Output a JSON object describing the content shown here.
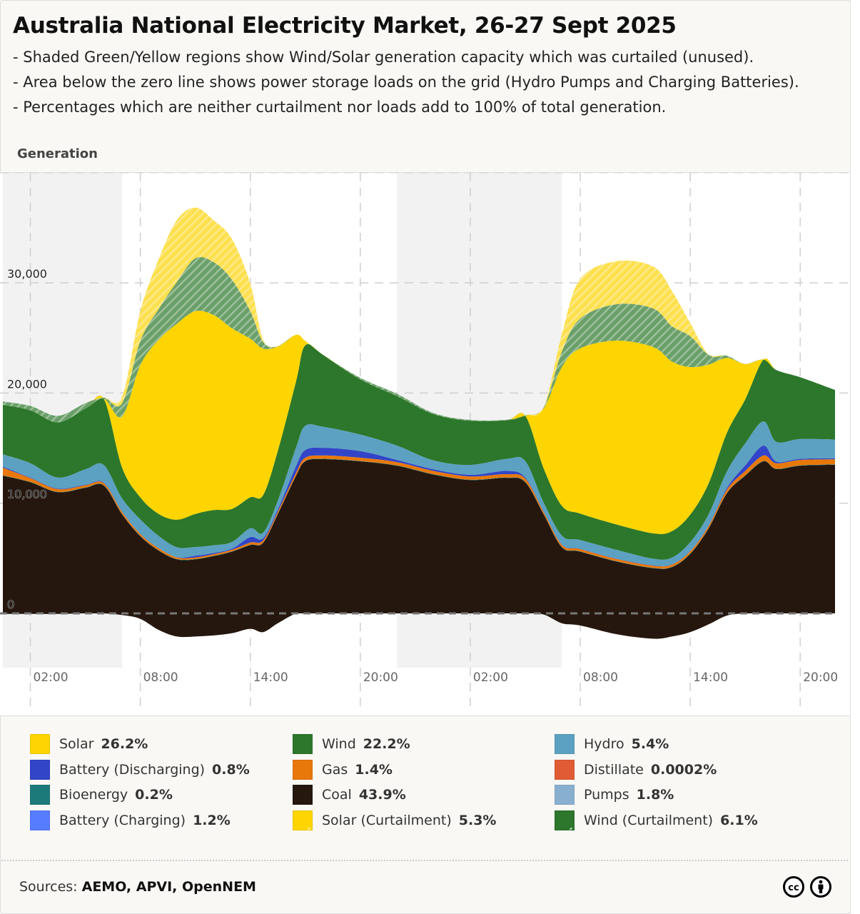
{
  "title": "Australia National Electricity Market, 26-27 Sept 2025",
  "notes": [
    "- Shaded Green/Yellow regions show Wind/Solar generation capacity which was curtailed (unused).",
    "- Area below the zero line shows power storage loads on the grid (Hydro Pumps and Charging Batteries).",
    "- Percentages which are neither curtailment nor loads add to 100% of total generation."
  ],
  "generation_label": "Generation",
  "legend": [
    {
      "label": "Solar",
      "pct": "26.2%",
      "color": "#fed500",
      "hatched": false
    },
    {
      "label": "Battery (Discharging)",
      "pct": "0.8%",
      "color": "#3245c8",
      "hatched": false
    },
    {
      "label": "Bioenergy",
      "pct": "0.2%",
      "color": "#1d7a7a",
      "hatched": false
    },
    {
      "label": "Battery (Charging)",
      "pct": "1.2%",
      "color": "#577cff",
      "hatched": false
    },
    {
      "label": "Wind",
      "pct": "22.2%",
      "color": "#2c772b",
      "hatched": false
    },
    {
      "label": "Gas",
      "pct": "1.4%",
      "color": "#e87809",
      "hatched": false
    },
    {
      "label": "Coal",
      "pct": "43.9%",
      "color": "#25170e",
      "hatched": false
    },
    {
      "label": "Solar (Curtailment)",
      "pct": "5.3%",
      "color": "#fed500",
      "hatched": true
    },
    {
      "label": "Hydro",
      "pct": "5.4%",
      "color": "#5ca1c1",
      "hatched": false
    },
    {
      "label": "Distillate",
      "pct": "0.0002%",
      "color": "#e15c34",
      "hatched": false
    },
    {
      "label": "Pumps",
      "pct": "1.8%",
      "color": "#88afd0",
      "hatched": false
    },
    {
      "label": "Wind (Curtailment)",
      "pct": "6.1%",
      "color": "#2c772b",
      "hatched": true
    }
  ],
  "sources_label": "Sources:",
  "sources_value": "AEMO, APVI, OpenNEM",
  "chart_data": {
    "type": "area",
    "title": "Australia National Electricity Market, 26-27 Sept 2025",
    "ylabel": "Generation",
    "ylim": [
      -3000,
      40000
    ],
    "yticks": [
      0,
      10000,
      20000,
      30000
    ],
    "ytick_labels": [
      "0",
      "10,000",
      "20,000",
      "30,000"
    ],
    "xlim_hours": [
      0.5,
      45.9
    ],
    "xticks_hours": [
      2,
      8,
      14,
      20,
      26,
      32,
      38,
      44
    ],
    "xtick_labels": [
      "02:00",
      "08:00",
      "14:00",
      "20:00",
      "02:00",
      "08:00",
      "14:00",
      "20:00"
    ],
    "night_bands_hours": [
      [
        0.5,
        7.0
      ],
      [
        22.0,
        31.0
      ]
    ],
    "grid": true,
    "legend_position": "bottom",
    "x_hours": [
      0.5,
      2,
      3.5,
      5,
      6,
      7,
      8,
      9,
      10,
      11,
      12,
      13,
      14,
      14.7,
      15.5,
      16.5,
      17,
      18,
      20,
      22,
      24,
      26,
      28,
      29,
      30,
      31,
      32,
      34,
      36,
      37,
      38,
      39,
      40,
      41,
      42,
      42.7,
      44,
      45.9
    ],
    "series": [
      {
        "name": "Coal",
        "values": [
          12500,
          11900,
          11000,
          11400,
          11600,
          9000,
          7000,
          5700,
          4900,
          4900,
          5200,
          5600,
          6200,
          6400,
          9000,
          12500,
          13800,
          14000,
          13800,
          13400,
          12600,
          12100,
          12300,
          11900,
          9000,
          6000,
          5600,
          4700,
          4100,
          4200,
          5400,
          7700,
          10900,
          12500,
          13800,
          13100,
          13400,
          13500
        ]
      },
      {
        "name": "Bioenergy",
        "values": [
          30,
          30,
          30,
          30,
          30,
          30,
          30,
          30,
          30,
          30,
          30,
          30,
          30,
          30,
          30,
          30,
          30,
          30,
          30,
          30,
          30,
          30,
          30,
          30,
          30,
          30,
          30,
          30,
          30,
          30,
          30,
          30,
          30,
          30,
          30,
          30,
          30,
          30
        ]
      },
      {
        "name": "Gas",
        "values": [
          700,
          350,
          250,
          200,
          200,
          200,
          180,
          180,
          150,
          150,
          150,
          150,
          200,
          200,
          200,
          250,
          300,
          300,
          300,
          300,
          300,
          300,
          300,
          300,
          200,
          200,
          200,
          200,
          200,
          200,
          200,
          200,
          300,
          400,
          500,
          500,
          500,
          450
        ]
      },
      {
        "name": "Distillate",
        "values": [
          0,
          0,
          0,
          0,
          0,
          0,
          0,
          0,
          0,
          0,
          0,
          0,
          0,
          0,
          0,
          0,
          0,
          0,
          0,
          0,
          0,
          0,
          0,
          0,
          0,
          0,
          0,
          0,
          0,
          0,
          0,
          0,
          0,
          0,
          0,
          0,
          0,
          0
        ]
      },
      {
        "name": "Battery (Discharging)",
        "values": [
          100,
          50,
          50,
          50,
          50,
          30,
          20,
          20,
          20,
          150,
          100,
          100,
          500,
          200,
          200,
          600,
          700,
          700,
          600,
          200,
          150,
          150,
          300,
          100,
          50,
          30,
          30,
          30,
          30,
          30,
          30,
          50,
          150,
          500,
          900,
          150,
          100,
          100
        ]
      },
      {
        "name": "Hydro",
        "values": [
          1100,
          1300,
          1000,
          1400,
          1600,
          1200,
          1300,
          1100,
          900,
          800,
          700,
          600,
          800,
          500,
          800,
          1700,
          2200,
          1900,
          1500,
          1300,
          800,
          900,
          1100,
          1500,
          800,
          800,
          800,
          800,
          600,
          600,
          800,
          1000,
          1500,
          2000,
          2200,
          1800,
          1800,
          1700
        ]
      },
      {
        "name": "Wind",
        "values": [
          4500,
          4800,
          5000,
          5500,
          6000,
          2800,
          2000,
          2000,
          2500,
          3000,
          3200,
          3000,
          2800,
          3400,
          4500,
          6000,
          7300,
          6500,
          5000,
          4500,
          4200,
          4000,
          3500,
          4100,
          3100,
          2700,
          2400,
          2300,
          2300,
          2400,
          2500,
          2800,
          3500,
          4000,
          5600,
          6500,
          5600,
          4500
        ]
      },
      {
        "name": "Solar",
        "values": [
          0,
          0,
          0,
          0,
          0,
          4600,
          12000,
          15800,
          17800,
          18400,
          17700,
          16400,
          14400,
          13300,
          9500,
          4200,
          400,
          0,
          0,
          0,
          0,
          0,
          0,
          0,
          5400,
          12600,
          15000,
          16700,
          16900,
          15400,
          13400,
          10800,
          6800,
          3200,
          0,
          0,
          0,
          0
        ]
      },
      {
        "name": "Wind (Curtailment)",
        "values": [
          300,
          400,
          600,
          500,
          100,
          1200,
          2200,
          2800,
          3800,
          4800,
          4800,
          4400,
          2500,
          600,
          0,
          0,
          0,
          0,
          150,
          200,
          100,
          80,
          50,
          50,
          80,
          1400,
          2700,
          3300,
          3500,
          3200,
          2800,
          900,
          200,
          0,
          0,
          0,
          0,
          0
        ]
      },
      {
        "name": "Solar (Curtailment)",
        "values": [
          0,
          0,
          0,
          0,
          0,
          600,
          2700,
          4500,
          5600,
          4600,
          3800,
          3700,
          2500,
          200,
          0,
          0,
          0,
          0,
          0,
          0,
          0,
          0,
          0,
          0,
          0,
          1600,
          3600,
          3900,
          3800,
          3200,
          1200,
          0,
          0,
          0,
          0,
          0,
          0,
          0
        ]
      },
      {
        "name": "Loads (Pumps + Battery Charging)",
        "values": [
          -50,
          -50,
          -50,
          0,
          0,
          -150,
          -500,
          -1500,
          -2100,
          -2100,
          -2000,
          -1800,
          -1400,
          -1700,
          -900,
          0,
          0,
          0,
          0,
          0,
          0,
          0,
          0,
          0,
          -100,
          -900,
          -1100,
          -1900,
          -2300,
          -2100,
          -1700,
          -1000,
          -200,
          0,
          0,
          0,
          0,
          0
        ]
      }
    ]
  }
}
